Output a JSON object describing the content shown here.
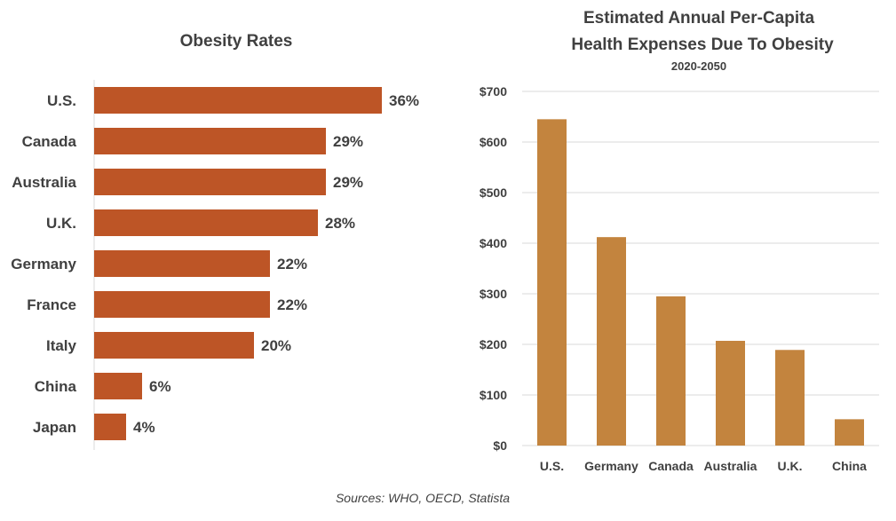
{
  "source_note": "Sources: WHO, OECD, Statista",
  "colors": {
    "left_bar": "#bd5526",
    "right_bar": "#c3843e",
    "grid": "#d9d9d9"
  },
  "chart_data": [
    {
      "type": "bar",
      "orientation": "horizontal",
      "title": "Obesity Rates",
      "categories": [
        "U.S.",
        "Canada",
        "Australia",
        "U.K.",
        "Germany",
        "France",
        "Italy",
        "China",
        "Japan"
      ],
      "values": [
        36,
        29,
        29,
        28,
        22,
        22,
        20,
        6,
        4
      ],
      "value_labels": [
        "36%",
        "29%",
        "29%",
        "28%",
        "22%",
        "22%",
        "20%",
        "6%",
        "4%"
      ],
      "unit": "%",
      "grid": false
    },
    {
      "type": "bar",
      "orientation": "vertical",
      "title_lines": [
        "Estimated Annual Per-Capita",
        "Health Expenses Due To Obesity"
      ],
      "subtitle": "2020-2050",
      "categories": [
        "U.S.",
        "Germany",
        "Canada",
        "Australia",
        "U.K.",
        "China"
      ],
      "values": [
        645,
        412,
        295,
        207,
        189,
        52
      ],
      "ylim": [
        0,
        700
      ],
      "y_ticks": [
        0,
        100,
        200,
        300,
        400,
        500,
        600,
        700
      ],
      "y_tick_labels": [
        "$0",
        "$100",
        "$200",
        "$300",
        "$400",
        "$500",
        "$600",
        "$700"
      ],
      "grid": true
    }
  ]
}
